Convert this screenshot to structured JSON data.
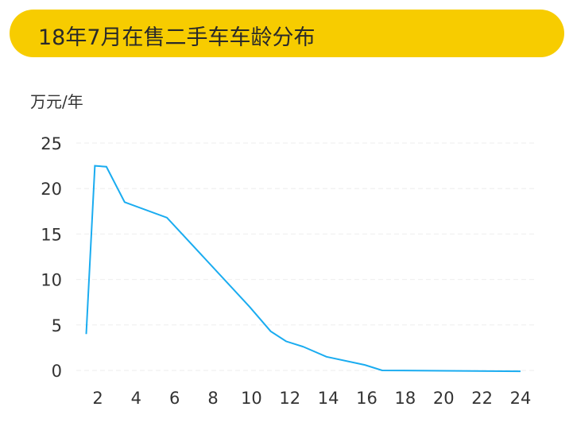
{
  "title": "18年7月在售二手车车龄分布",
  "chart_data": {
    "type": "line",
    "title": "18年7月在售二手车车龄分布",
    "ylabel": "万元/年",
    "xlabel": "",
    "xlim": [
      1,
      25
    ],
    "ylim": [
      0,
      25
    ],
    "xticks": [
      2,
      4,
      6,
      8,
      10,
      12,
      14,
      16,
      18,
      20,
      22,
      24
    ],
    "yticks": [
      0,
      5,
      10,
      15,
      20,
      25
    ],
    "grid": "horizontal dashed",
    "color": "#1aacf0",
    "x": [
      1.4,
      1.85,
      2.45,
      3.4,
      5.6,
      9.9,
      11.0,
      11.8,
      12.7,
      13.9,
      15.9,
      16.8,
      24
    ],
    "y": [
      4.0,
      22.5,
      22.4,
      18.5,
      16.8,
      7.0,
      4.3,
      3.2,
      2.6,
      1.5,
      0.6,
      0.0,
      -0.1
    ]
  }
}
